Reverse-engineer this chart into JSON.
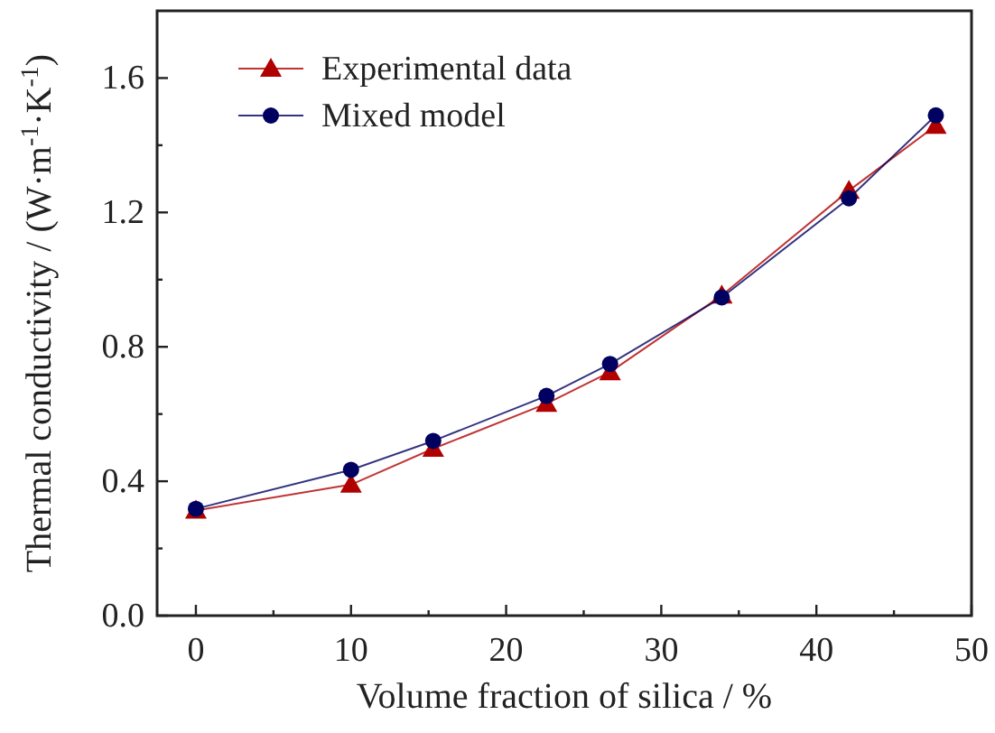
{
  "chart_data": {
    "type": "line",
    "xlabel": "Volume fraction of silica / %",
    "ylabel": "Thermal conductivity / (W·m$^{-1}$·K$^{-1}$)",
    "xlim": [
      -2.5,
      50
    ],
    "xticks": [
      0,
      {
        "value": 5,
        "label": null
      },
      10,
      {
        "value": 15,
        "label": null
      },
      20,
      {
        "value": 25,
        "label": null
      },
      30,
      {
        "value": 35,
        "label": null
      },
      40,
      {
        "value": 45,
        "label": null
      },
      50
    ],
    "ylim": [
      0,
      1.8
    ],
    "yticks": [
      "0.0",
      {
        "value": 0.2,
        "label": null
      },
      0.4,
      {
        "value": 0.6,
        "label": null
      },
      0.8,
      {
        "value": 1.0,
        "label": null
      },
      1.2,
      {
        "value": 1.4,
        "label": null
      },
      1.6
    ],
    "legend": "top left",
    "line_style": "solid",
    "series": [
      {
        "name": "Experimental data",
        "color": "#b00000",
        "marker": "triangle",
        "x": [
          0,
          10,
          15.3,
          22.6,
          26.7,
          33.9,
          42.1,
          47.7
        ],
        "values": [
          0.313,
          0.39,
          0.497,
          0.631,
          0.725,
          0.953,
          1.265,
          1.458
        ]
      },
      {
        "name": "Mixed model",
        "color": "#000060",
        "marker": "circle",
        "x": [
          0,
          10,
          15.3,
          22.6,
          26.7,
          33.9,
          42.1,
          47.7
        ],
        "values": [
          0.318,
          0.434,
          0.52,
          0.654,
          0.749,
          0.947,
          1.242,
          1.489
        ]
      }
    ]
  }
}
